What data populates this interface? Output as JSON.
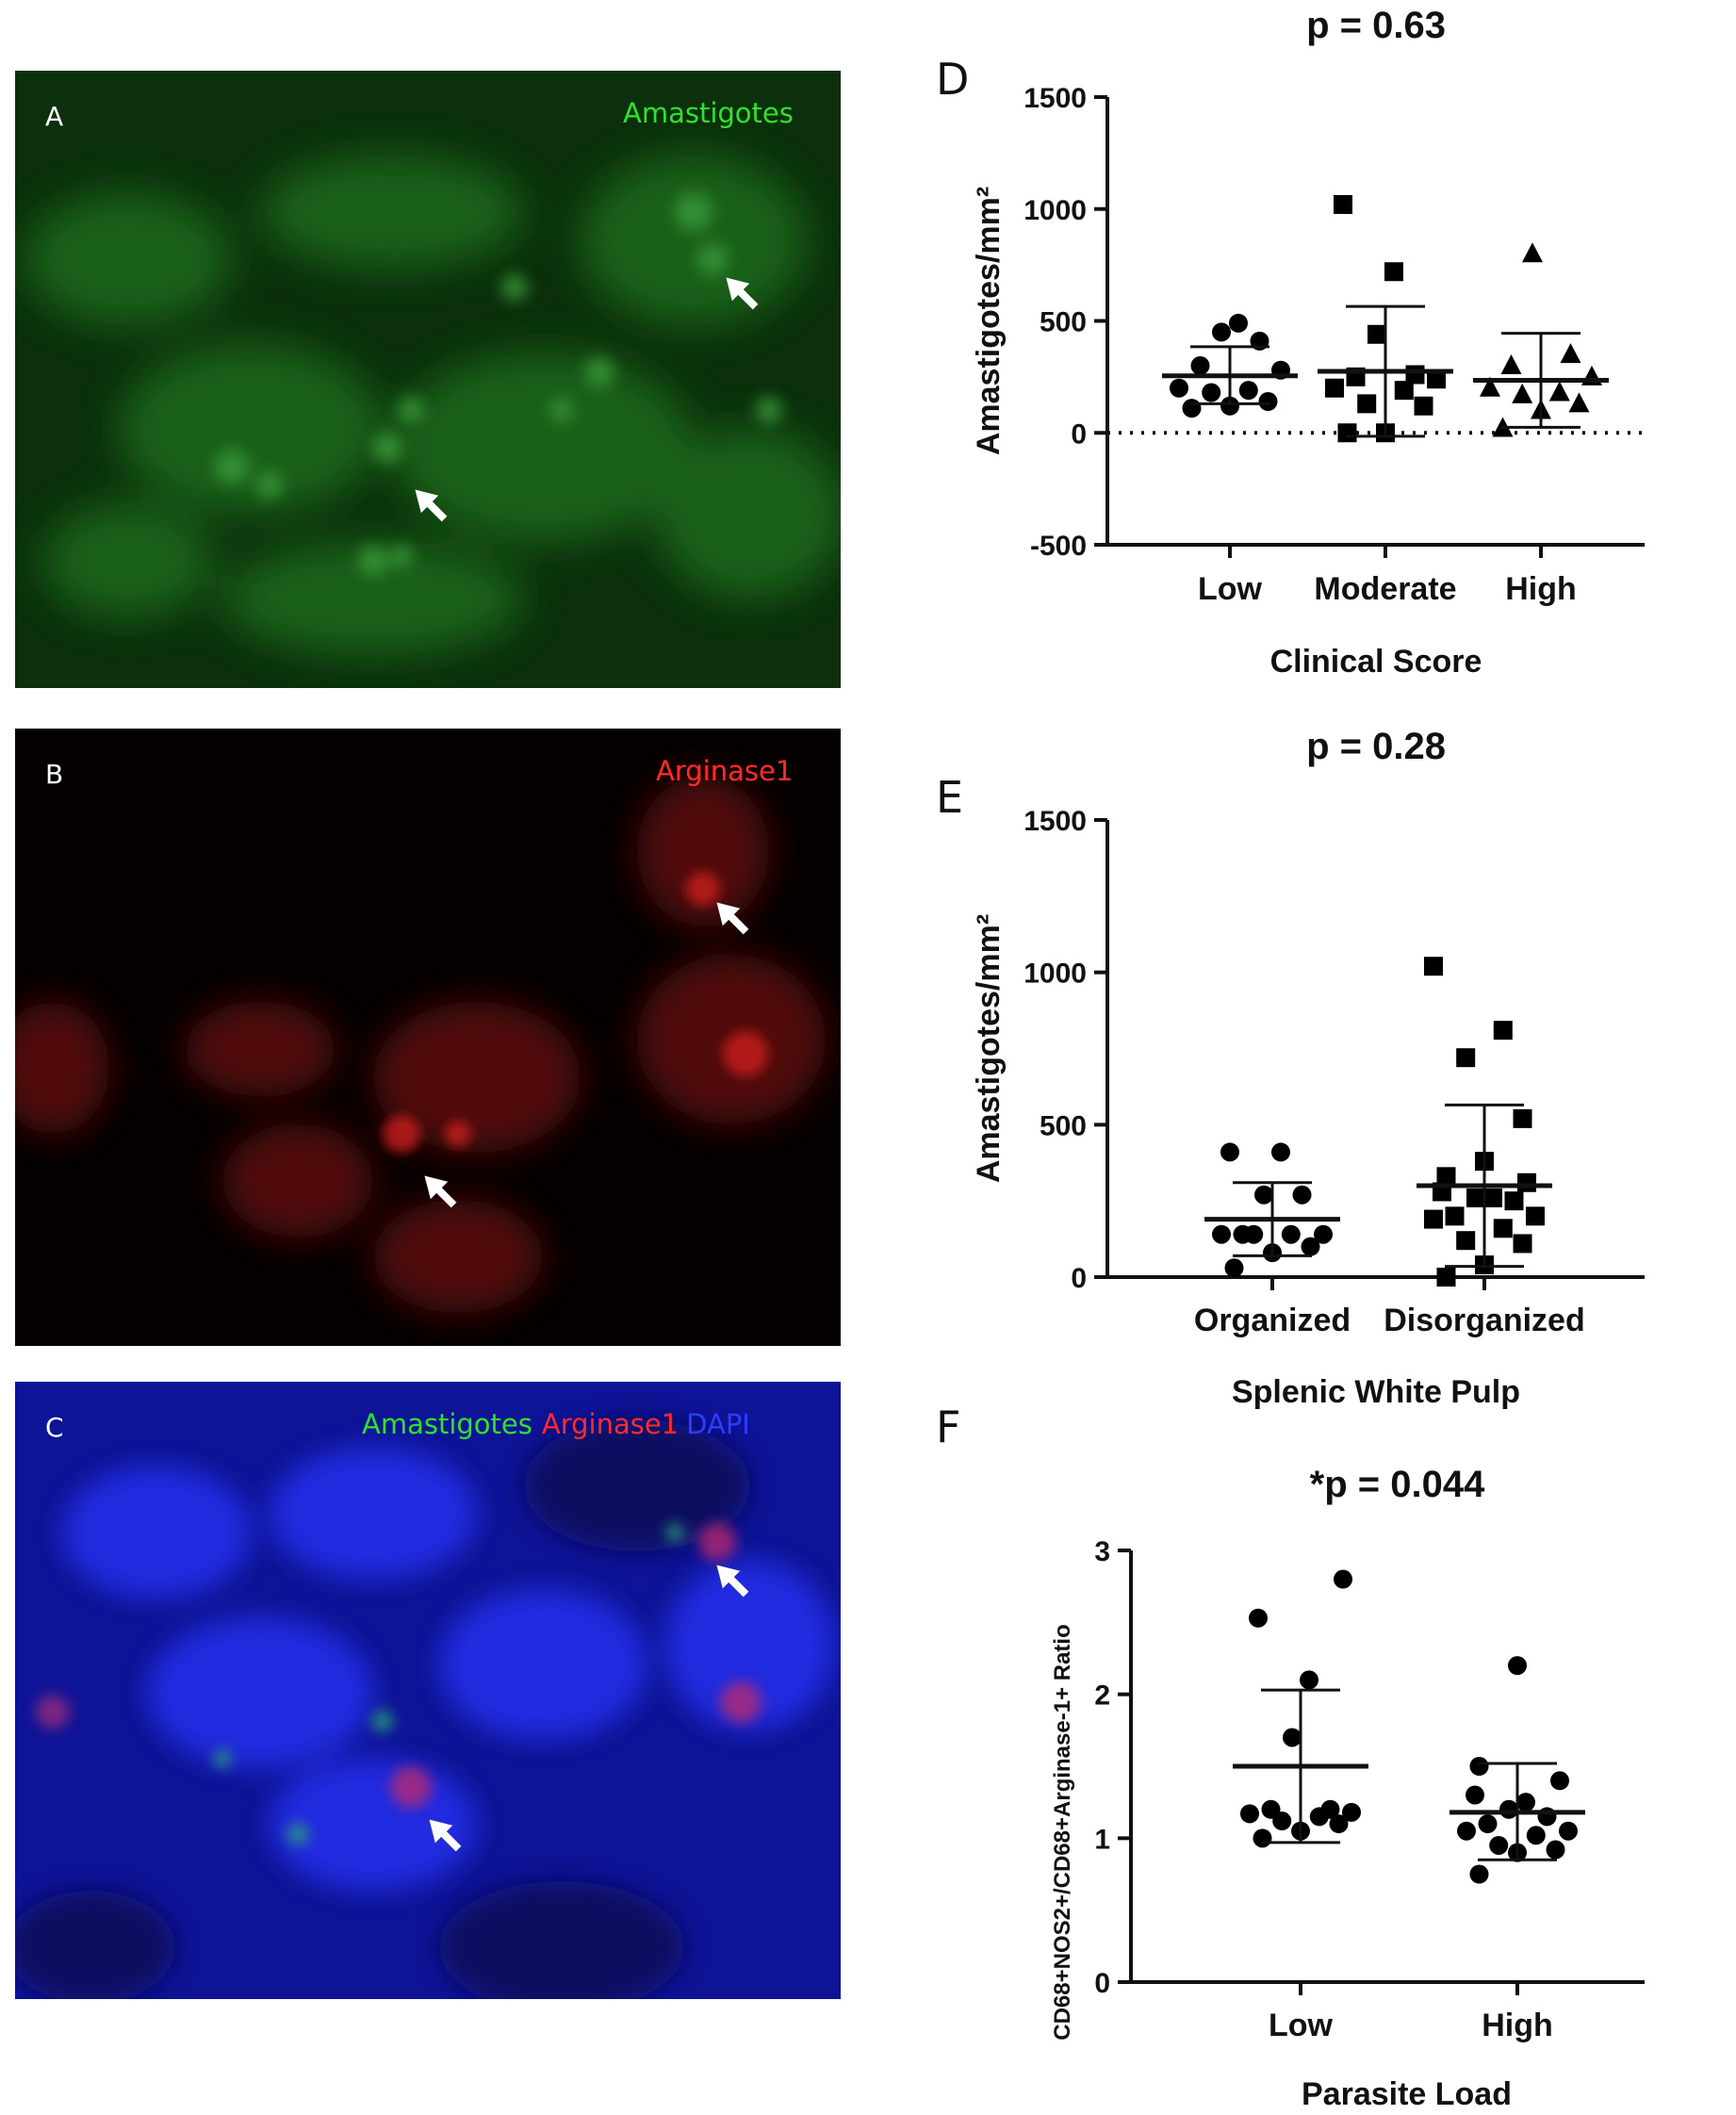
{
  "colors": {
    "green_channel": "#2ee22e",
    "red_channel": "#ff2a2a",
    "blue_channel": "#2d3cff",
    "marker": "#000000"
  },
  "micrographs": [
    {
      "letter": "A",
      "channels": [
        {
          "label": "Amastigotes",
          "color": "#2ee22e"
        }
      ]
    },
    {
      "letter": "B",
      "channels": [
        {
          "label": "Arginase1",
          "color": "#ff2a2a"
        }
      ]
    },
    {
      "letter": "C",
      "channels": [
        {
          "label": "Amastigotes",
          "color": "#2ee22e"
        },
        {
          "label": "Arginase1",
          "color": "#ff2a2a"
        },
        {
          "label": "DAPI",
          "color": "#2d3cff"
        }
      ]
    }
  ],
  "chart_data": [
    {
      "panel": "D",
      "type": "scatter",
      "title": "p = 0.63",
      "xlabel": "Clinical Score",
      "ylabel": "Amastigotes/mm²",
      "categories": [
        "Low",
        "Moderate",
        "High"
      ],
      "ylim": [
        -500,
        1500
      ],
      "yticks": [
        -500,
        0,
        500,
        1000,
        1500
      ],
      "zero_line": "dotted",
      "series": [
        {
          "category": "Low",
          "marker": "circle",
          "values": [
            490,
            450,
            410,
            200,
            190,
            180,
            140,
            120,
            110,
            280,
            300
          ],
          "mean": 255,
          "sd_low": 130,
          "sd_high": 385
        },
        {
          "category": "Moderate",
          "marker": "square",
          "values": [
            1020,
            720,
            440,
            260,
            250,
            240,
            200,
            190,
            130,
            120,
            0,
            0
          ],
          "mean": 275,
          "sd_low": -15,
          "sd_high": 565
        },
        {
          "category": "High",
          "marker": "triangle",
          "values": [
            800,
            350,
            300,
            250,
            200,
            180,
            170,
            130,
            100,
            20
          ],
          "mean": 235,
          "sd_low": 25,
          "sd_high": 445
        }
      ]
    },
    {
      "panel": "E",
      "type": "scatter",
      "title": "p = 0.28",
      "xlabel": "Splenic White Pulp",
      "ylabel": "Amastigotes/mm²",
      "categories": [
        "Organized",
        "Disorganized"
      ],
      "ylim": [
        0,
        1500
      ],
      "yticks": [
        0,
        500,
        1000,
        1500
      ],
      "series": [
        {
          "category": "Organized",
          "marker": "circle",
          "values": [
            410,
            410,
            270,
            270,
            140,
            140,
            140,
            140,
            140,
            100,
            80,
            30
          ],
          "mean": 190,
          "sd_low": 70,
          "sd_high": 310
        },
        {
          "category": "Disorganized",
          "marker": "square",
          "values": [
            1020,
            810,
            720,
            520,
            380,
            330,
            310,
            280,
            260,
            260,
            250,
            200,
            200,
            190,
            160,
            120,
            110,
            40,
            0
          ],
          "mean": 300,
          "sd_low": 35,
          "sd_high": 565
        }
      ]
    },
    {
      "panel": "F",
      "type": "scatter",
      "title": "*p = 0.044",
      "xlabel": "Parasite Load",
      "ylabel": "CD68+NOS2+/CD68+Arginase-1+ Ratio",
      "categories": [
        "Low",
        "High"
      ],
      "ylim": [
        0,
        3
      ],
      "yticks": [
        0,
        1,
        2,
        3
      ],
      "series": [
        {
          "category": "Low",
          "marker": "circle",
          "values": [
            2.8,
            2.53,
            2.1,
            1.7,
            1.2,
            1.2,
            1.18,
            1.17,
            1.15,
            1.12,
            1.1,
            1.05,
            1.0
          ],
          "mean": 1.5,
          "sd_low": 0.97,
          "sd_high": 2.03
        },
        {
          "category": "High",
          "marker": "circle",
          "values": [
            2.2,
            1.5,
            1.4,
            1.3,
            1.25,
            1.2,
            1.15,
            1.1,
            1.05,
            1.05,
            1.02,
            0.95,
            0.92,
            0.9,
            0.75
          ],
          "mean": 1.18,
          "sd_low": 0.85,
          "sd_high": 1.52
        }
      ]
    }
  ]
}
